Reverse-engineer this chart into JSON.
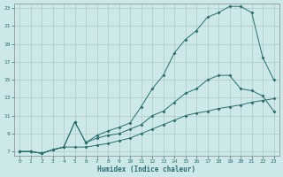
{
  "xlabel": "Humidex (Indice chaleur)",
  "bg_color": "#cce8e8",
  "grid_color": "#b0c8c8",
  "line_color": "#2a6e6e",
  "xlim": [
    -0.5,
    23.5
  ],
  "ylim": [
    6.5,
    23.5
  ],
  "yticks": [
    7,
    9,
    11,
    13,
    15,
    17,
    19,
    21,
    23
  ],
  "xticks": [
    0,
    1,
    2,
    3,
    4,
    5,
    6,
    7,
    8,
    9,
    10,
    11,
    12,
    13,
    14,
    15,
    16,
    17,
    18,
    19,
    20,
    21,
    22,
    23
  ],
  "series_main_x": [
    0,
    1,
    2,
    3,
    4,
    5,
    6,
    7,
    8,
    9,
    10,
    11,
    12,
    13,
    14,
    15,
    16,
    17,
    18,
    19,
    20,
    21,
    22,
    23
  ],
  "series_main_y": [
    7,
    7,
    6.8,
    7.2,
    7.5,
    10.3,
    8.0,
    8.8,
    9.3,
    9.7,
    10.2,
    12.0,
    14.0,
    15.5,
    18.0,
    19.5,
    20.5,
    22.0,
    22.5,
    23.2,
    23.2,
    22.5,
    17.5,
    15.0
  ],
  "series_mid_x": [
    0,
    1,
    2,
    3,
    4,
    5,
    6,
    7,
    8,
    9,
    10,
    11,
    12,
    13,
    14,
    15,
    16,
    17,
    18,
    19,
    20,
    21,
    22,
    23
  ],
  "series_mid_y": [
    7,
    7,
    6.8,
    7.2,
    7.5,
    10.3,
    8.0,
    8.5,
    8.8,
    9.0,
    9.5,
    10.0,
    11.0,
    11.5,
    12.5,
    13.5,
    14.0,
    15.0,
    15.5,
    15.5,
    14.0,
    13.8,
    13.2,
    11.5
  ],
  "series_base_x": [
    0,
    1,
    2,
    3,
    4,
    5,
    6,
    7,
    8,
    9,
    10,
    11,
    12,
    13,
    14,
    15,
    16,
    17,
    18,
    19,
    20,
    21,
    22,
    23
  ],
  "series_base_y": [
    7,
    7,
    6.8,
    7.2,
    7.5,
    7.5,
    7.5,
    7.7,
    7.9,
    8.2,
    8.5,
    9.0,
    9.5,
    10.0,
    10.5,
    11.0,
    11.3,
    11.5,
    11.8,
    12.0,
    12.2,
    12.5,
    12.7,
    12.9
  ]
}
